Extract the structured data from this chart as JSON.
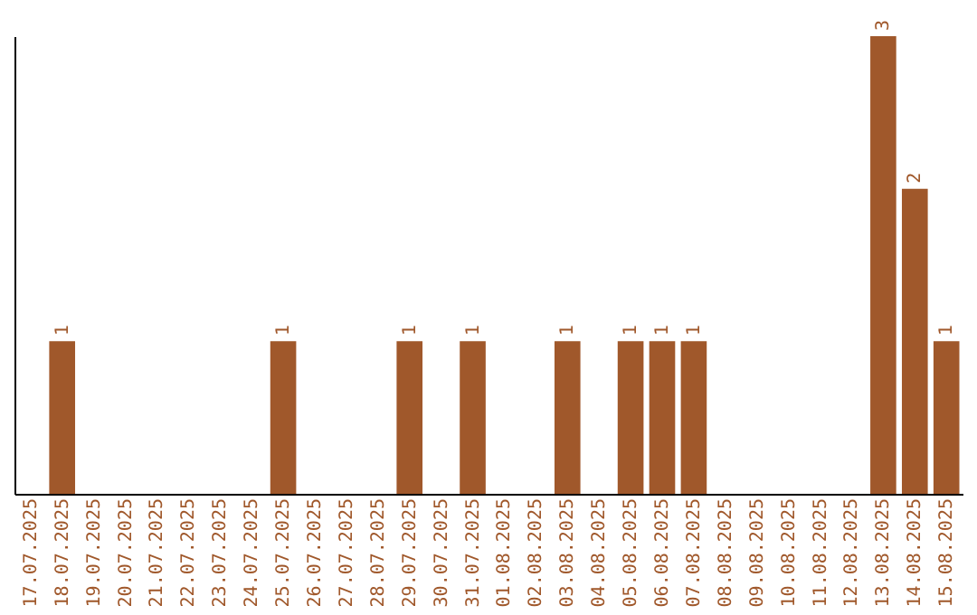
{
  "chart_data": {
    "type": "bar",
    "categories": [
      "17.07.2025",
      "18.07.2025",
      "19.07.2025",
      "20.07.2025",
      "21.07.2025",
      "22.07.2025",
      "23.07.2025",
      "24.07.2025",
      "25.07.2025",
      "26.07.2025",
      "27.07.2025",
      "28.07.2025",
      "29.07.2025",
      "30.07.2025",
      "31.07.2025",
      "01.08.2025",
      "02.08.2025",
      "03.08.2025",
      "04.08.2025",
      "05.08.2025",
      "06.08.2025",
      "07.08.2025",
      "08.08.2025",
      "09.08.2025",
      "10.08.2025",
      "11.08.2025",
      "12.08.2025",
      "13.08.2025",
      "14.08.2025",
      "15.08.2025"
    ],
    "values": [
      0,
      1,
      0,
      0,
      0,
      0,
      0,
      0,
      1,
      0,
      0,
      0,
      1,
      0,
      1,
      0,
      0,
      1,
      0,
      1,
      1,
      1,
      0,
      0,
      0,
      0,
      0,
      3,
      2,
      1
    ],
    "value_labels": [
      null,
      "1",
      null,
      null,
      null,
      null,
      null,
      null,
      "1",
      null,
      null,
      null,
      "1",
      null,
      "1",
      null,
      null,
      "1",
      null,
      "1",
      "1",
      "1",
      null,
      null,
      null,
      null,
      null,
      "3",
      "2",
      "1"
    ],
    "color": "#a0582b",
    "tick_labels": "x",
    "grid": false
  }
}
